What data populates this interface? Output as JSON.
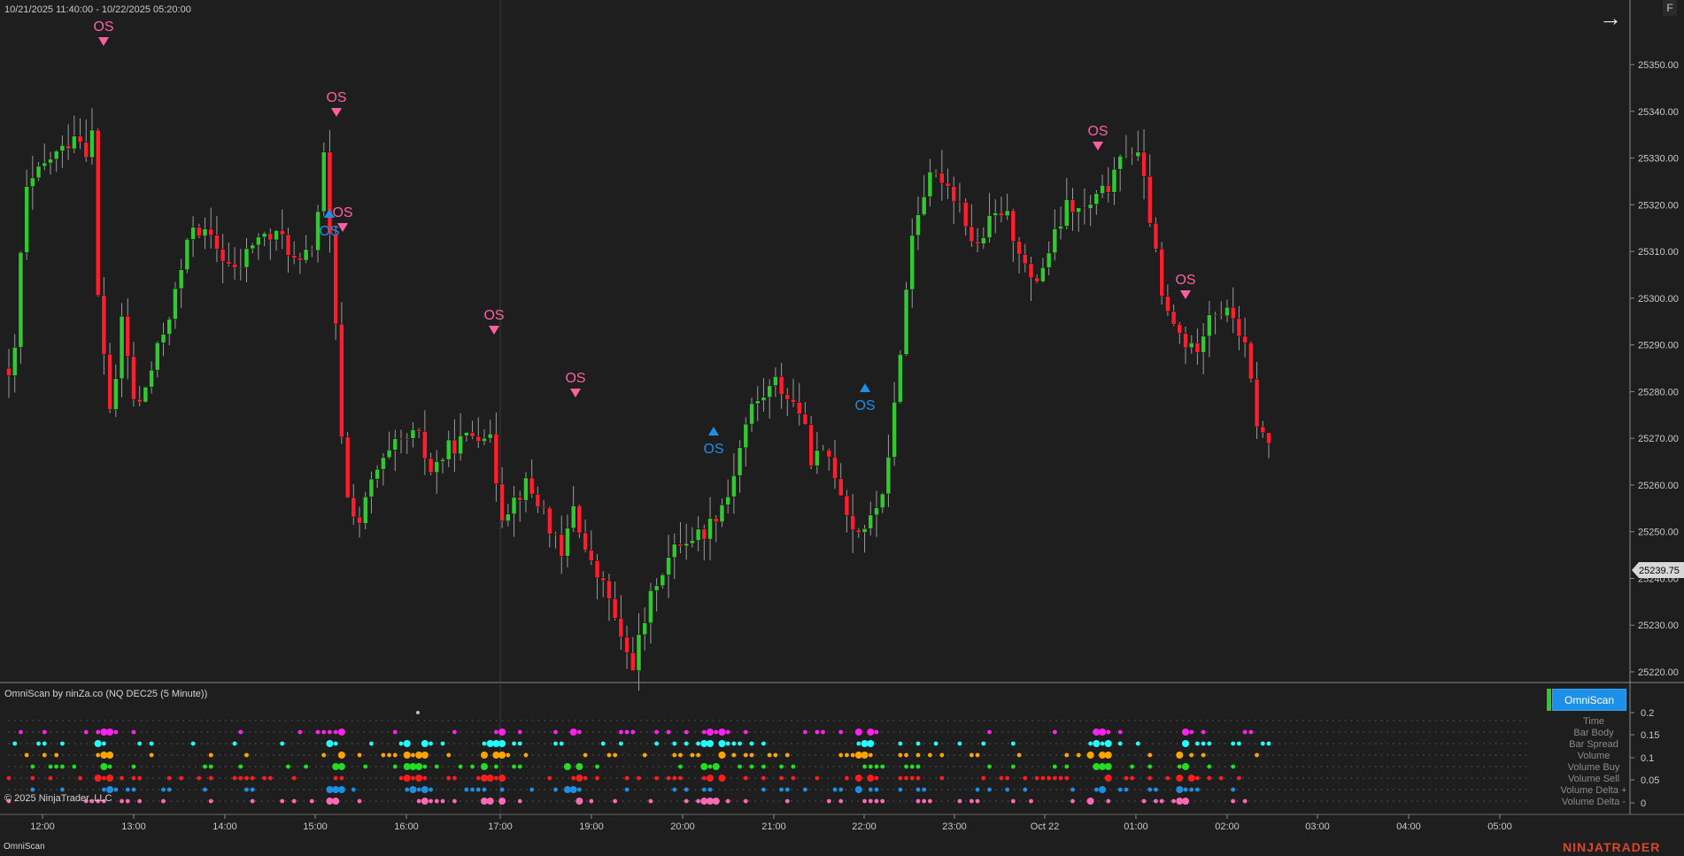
{
  "header": {
    "date_range": "10/21/2025 11:40:00 - 10/22/2025 05:20:00",
    "f_tab": "F",
    "arrow_icon": "right-arrow-icon"
  },
  "price_axis": {
    "ticks": [
      "25350.00",
      "25340.00",
      "25330.00",
      "25320.00",
      "25310.00",
      "25300.00",
      "25290.00",
      "25280.00",
      "25270.00",
      "25260.00",
      "25250.00",
      "25240.00",
      "25230.00",
      "25220.00"
    ],
    "last_price": "25239.75"
  },
  "time_axis": {
    "ticks": [
      "12:00",
      "13:00",
      "14:00",
      "15:00",
      "16:00",
      "17:00",
      "19:00",
      "20:00",
      "21:00",
      "22:00",
      "23:00",
      "Oct 22",
      "01:00",
      "02:00",
      "03:00",
      "04:00",
      "05:00"
    ]
  },
  "indicator": {
    "title": "OmniScan by ninZa.co (NQ DEC25 (5 Minute))",
    "button_label": "OmniScan",
    "rows": [
      "Time",
      "Bar Body",
      "Bar Spread",
      "Volume",
      "Volume Buy",
      "Volume Sell",
      "Volume Delta +",
      "Volume Delta -"
    ],
    "axis_ticks": [
      "0.2",
      "0.15",
      "0.1",
      "0.05",
      "0"
    ]
  },
  "footer": {
    "copyright": "© 2025 NinjaTrader, LLC",
    "tab": "OmniScan",
    "brand": "NINJATRADER"
  },
  "colors": {
    "background": "#1e1e1e",
    "up_candle": "#32c832",
    "down_candle": "#ff1e2d",
    "os_bear": "#ff5fa0",
    "os_bull": "#1e8fe6",
    "grid_dots": "#4a4a4a",
    "time_dot": "#ff22ee",
    "body_dot": "#22ffff",
    "volume_dot": "#ffa500",
    "vol_buy_dot": "#22dd22",
    "vol_sell_dot": "#ff1e1e",
    "delta_plus_dot": "#1e8fe6",
    "delta_minus_dot": "#ff69b4"
  },
  "chart_data": {
    "type": "candlestick",
    "instrument": "NQ DEC25 (5 Minute)",
    "ylim": [
      25215,
      25357
    ],
    "key_points": [
      {
        "time": "11:40",
        "close": 25285
      },
      {
        "time": "12:55",
        "high": 25349,
        "signal": "OS"
      },
      {
        "time": "15:55",
        "high": 25331,
        "signal": "OS"
      },
      {
        "time": "16:05",
        "low": 25228
      },
      {
        "time": "16:00",
        "signal": "OS",
        "direction": "down"
      },
      {
        "time": "16:00",
        "signal": "OS",
        "direction": "up"
      },
      {
        "time": "19:05",
        "high": 25277,
        "signal": "OS"
      },
      {
        "time": "20:10",
        "high": 25256,
        "signal": "OS"
      },
      {
        "time": "21:05",
        "low": 25215
      },
      {
        "time": "22:00",
        "low": 25242,
        "signal": "OS",
        "direction": "up"
      },
      {
        "time": "23:55",
        "low": 25257,
        "signal": "OS",
        "direction": "up"
      },
      {
        "time": "00:30",
        "high": 25332
      },
      {
        "time": "02:55",
        "high": 25338
      },
      {
        "time": "03:05",
        "high": 25331,
        "signal": "OS"
      },
      {
        "time": "04:15",
        "high": 25294,
        "signal": "OS"
      },
      {
        "time": "05:20",
        "close": 25239.75
      }
    ],
    "signals": [
      {
        "label": "OS",
        "time": "12:55",
        "direction": "down"
      },
      {
        "label": "OS",
        "time": "15:55",
        "direction": "down"
      },
      {
        "label": "OS",
        "time": "16:05",
        "direction": "down"
      },
      {
        "label": "OS",
        "time": "16:00",
        "direction": "up"
      },
      {
        "label": "OS",
        "time": "19:05",
        "direction": "down"
      },
      {
        "label": "OS",
        "time": "20:10",
        "direction": "down"
      },
      {
        "label": "OS",
        "time": "22:00",
        "direction": "up"
      },
      {
        "label": "OS",
        "time": "23:55",
        "direction": "up"
      },
      {
        "label": "OS",
        "time": "03:05",
        "direction": "down"
      },
      {
        "label": "OS",
        "time": "04:15",
        "direction": "down"
      }
    ]
  }
}
